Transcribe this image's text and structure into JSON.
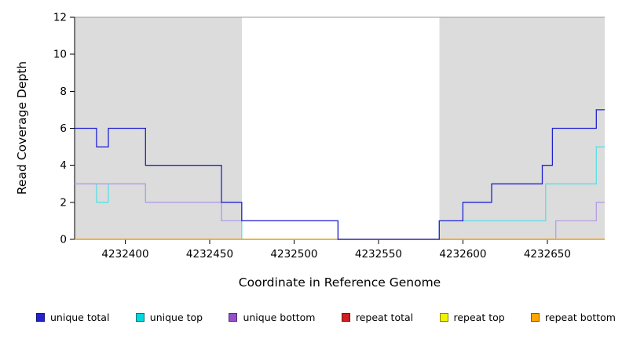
{
  "chart_data": {
    "type": "line",
    "subtype": "step-coverage",
    "title": "",
    "xlabel": "Coordinate in Reference Genome",
    "ylabel": "Read Coverage Depth",
    "xlim": [
      4232370,
      4232684
    ],
    "ylim": [
      0,
      12
    ],
    "xticks": [
      4232400,
      4232450,
      4232500,
      4232550,
      4232600,
      4232650
    ],
    "yticks": [
      0,
      2,
      4,
      6,
      8,
      10,
      12
    ],
    "grid": false,
    "legend_position": "bottom",
    "frame_top_color": "#9a9a9a",
    "shaded_regions": [
      {
        "x0": 4232370,
        "x1": 4232469,
        "color": "#dcdcdc"
      },
      {
        "x0": 4232586,
        "x1": 4232684,
        "color": "#dcdcdc"
      }
    ],
    "series": [
      {
        "name": "repeat total",
        "color": "#cf1f1f",
        "steps": [
          [
            4232370,
            0
          ],
          [
            4232684,
            0
          ]
        ]
      },
      {
        "name": "repeat top",
        "color": "#f2f200",
        "steps": [
          [
            4232370,
            0
          ],
          [
            4232684,
            0
          ]
        ]
      },
      {
        "name": "unique top",
        "color": "#58dfe6",
        "steps": [
          [
            4232370,
            3
          ],
          [
            4232383,
            2
          ],
          [
            4232390,
            3
          ],
          [
            4232412,
            2
          ],
          [
            4232457,
            1
          ],
          [
            4232469,
            0
          ],
          [
            4232586,
            1
          ],
          [
            4232649,
            3
          ],
          [
            4232679,
            5
          ],
          [
            4232684,
            5
          ]
        ]
      },
      {
        "name": "unique bottom",
        "color": "#b79ce6",
        "steps": [
          [
            4232370,
            3
          ],
          [
            4232412,
            2
          ],
          [
            4232457,
            1
          ],
          [
            4232526,
            0
          ],
          [
            4232655,
            1
          ],
          [
            4232679,
            2
          ],
          [
            4232684,
            2
          ]
        ]
      },
      {
        "name": "repeat bottom",
        "color": "#ffa500",
        "steps": [
          [
            4232370,
            0
          ],
          [
            4232684,
            0
          ]
        ]
      },
      {
        "name": "unique total",
        "color": "#2222d2",
        "steps": [
          [
            4232370,
            6
          ],
          [
            4232383,
            5
          ],
          [
            4232390,
            6
          ],
          [
            4232412,
            4
          ],
          [
            4232457,
            2
          ],
          [
            4232469,
            1
          ],
          [
            4232526,
            0
          ],
          [
            4232586,
            1
          ],
          [
            4232600,
            2
          ],
          [
            4232617,
            3
          ],
          [
            4232647,
            4
          ],
          [
            4232653,
            6
          ],
          [
            4232679,
            7
          ],
          [
            4232684,
            7
          ]
        ]
      }
    ]
  },
  "legend": {
    "items": [
      {
        "label": "unique total",
        "color": "#2222d2"
      },
      {
        "label": "unique top",
        "color": "#00d8dc"
      },
      {
        "label": "unique bottom",
        "color": "#9450c8"
      },
      {
        "label": "repeat total",
        "color": "#cf1f1f"
      },
      {
        "label": "repeat top",
        "color": "#f2f200"
      },
      {
        "label": "repeat bottom",
        "color": "#ffa500"
      }
    ]
  }
}
